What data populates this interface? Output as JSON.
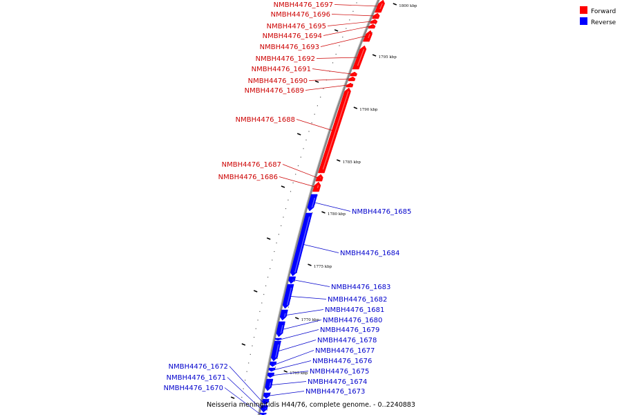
{
  "colors": {
    "forward": "#ff0000",
    "reverse": "#0000ff",
    "forward_label": "#cc0000",
    "reverse_label": "#0000cc",
    "backbone": "#999999"
  },
  "legend": {
    "forward": "Forward",
    "reverse": "Reverse"
  },
  "caption": "Neisseria meningitidis H44/76, complete genome. - 0..2240883",
  "tick_labels": [
    "1800 kbp",
    "1795 kbp",
    "1790 kbp",
    "1785 kbp",
    "1780 kbp",
    "1775 kbp",
    "1770 kbp",
    "1765 kbp"
  ],
  "genes": [
    {
      "name": "NMBH4476_1697",
      "strand": "forward"
    },
    {
      "name": "NMBH4476_1696",
      "strand": "forward"
    },
    {
      "name": "NMBH4476_1695",
      "strand": "forward"
    },
    {
      "name": "NMBH4476_1694",
      "strand": "forward"
    },
    {
      "name": "NMBH4476_1693",
      "strand": "forward"
    },
    {
      "name": "NMBH4476_1692",
      "strand": "forward"
    },
    {
      "name": "NMBH4476_1691",
      "strand": "forward"
    },
    {
      "name": "NMBH4476_1690",
      "strand": "forward"
    },
    {
      "name": "NMBH4476_1689",
      "strand": "forward"
    },
    {
      "name": "NMBH4476_1688",
      "strand": "forward"
    },
    {
      "name": "NMBH4476_1687",
      "strand": "forward"
    },
    {
      "name": "NMBH4476_1686",
      "strand": "forward"
    },
    {
      "name": "NMBH4476_1685",
      "strand": "reverse"
    },
    {
      "name": "NMBH4476_1684",
      "strand": "reverse"
    },
    {
      "name": "NMBH4476_1683",
      "strand": "reverse"
    },
    {
      "name": "NMBH4476_1682",
      "strand": "reverse"
    },
    {
      "name": "NMBH4476_1681",
      "strand": "reverse"
    },
    {
      "name": "NMBH4476_1680",
      "strand": "reverse"
    },
    {
      "name": "NMBH4476_1679",
      "strand": "reverse"
    },
    {
      "name": "NMBH4476_1678",
      "strand": "reverse"
    },
    {
      "name": "NMBH4476_1677",
      "strand": "reverse"
    },
    {
      "name": "NMBH4476_1676",
      "strand": "reverse"
    },
    {
      "name": "NMBH4476_1675",
      "strand": "reverse"
    },
    {
      "name": "NMBH4476_1674",
      "strand": "reverse"
    },
    {
      "name": "NMBH4476_1673",
      "strand": "reverse"
    },
    {
      "name": "NMBH4476_1672",
      "strand": "reverse"
    },
    {
      "name": "NMBH4476_1671",
      "strand": "reverse"
    },
    {
      "name": "NMBH4476_1670",
      "strand": "reverse"
    }
  ]
}
